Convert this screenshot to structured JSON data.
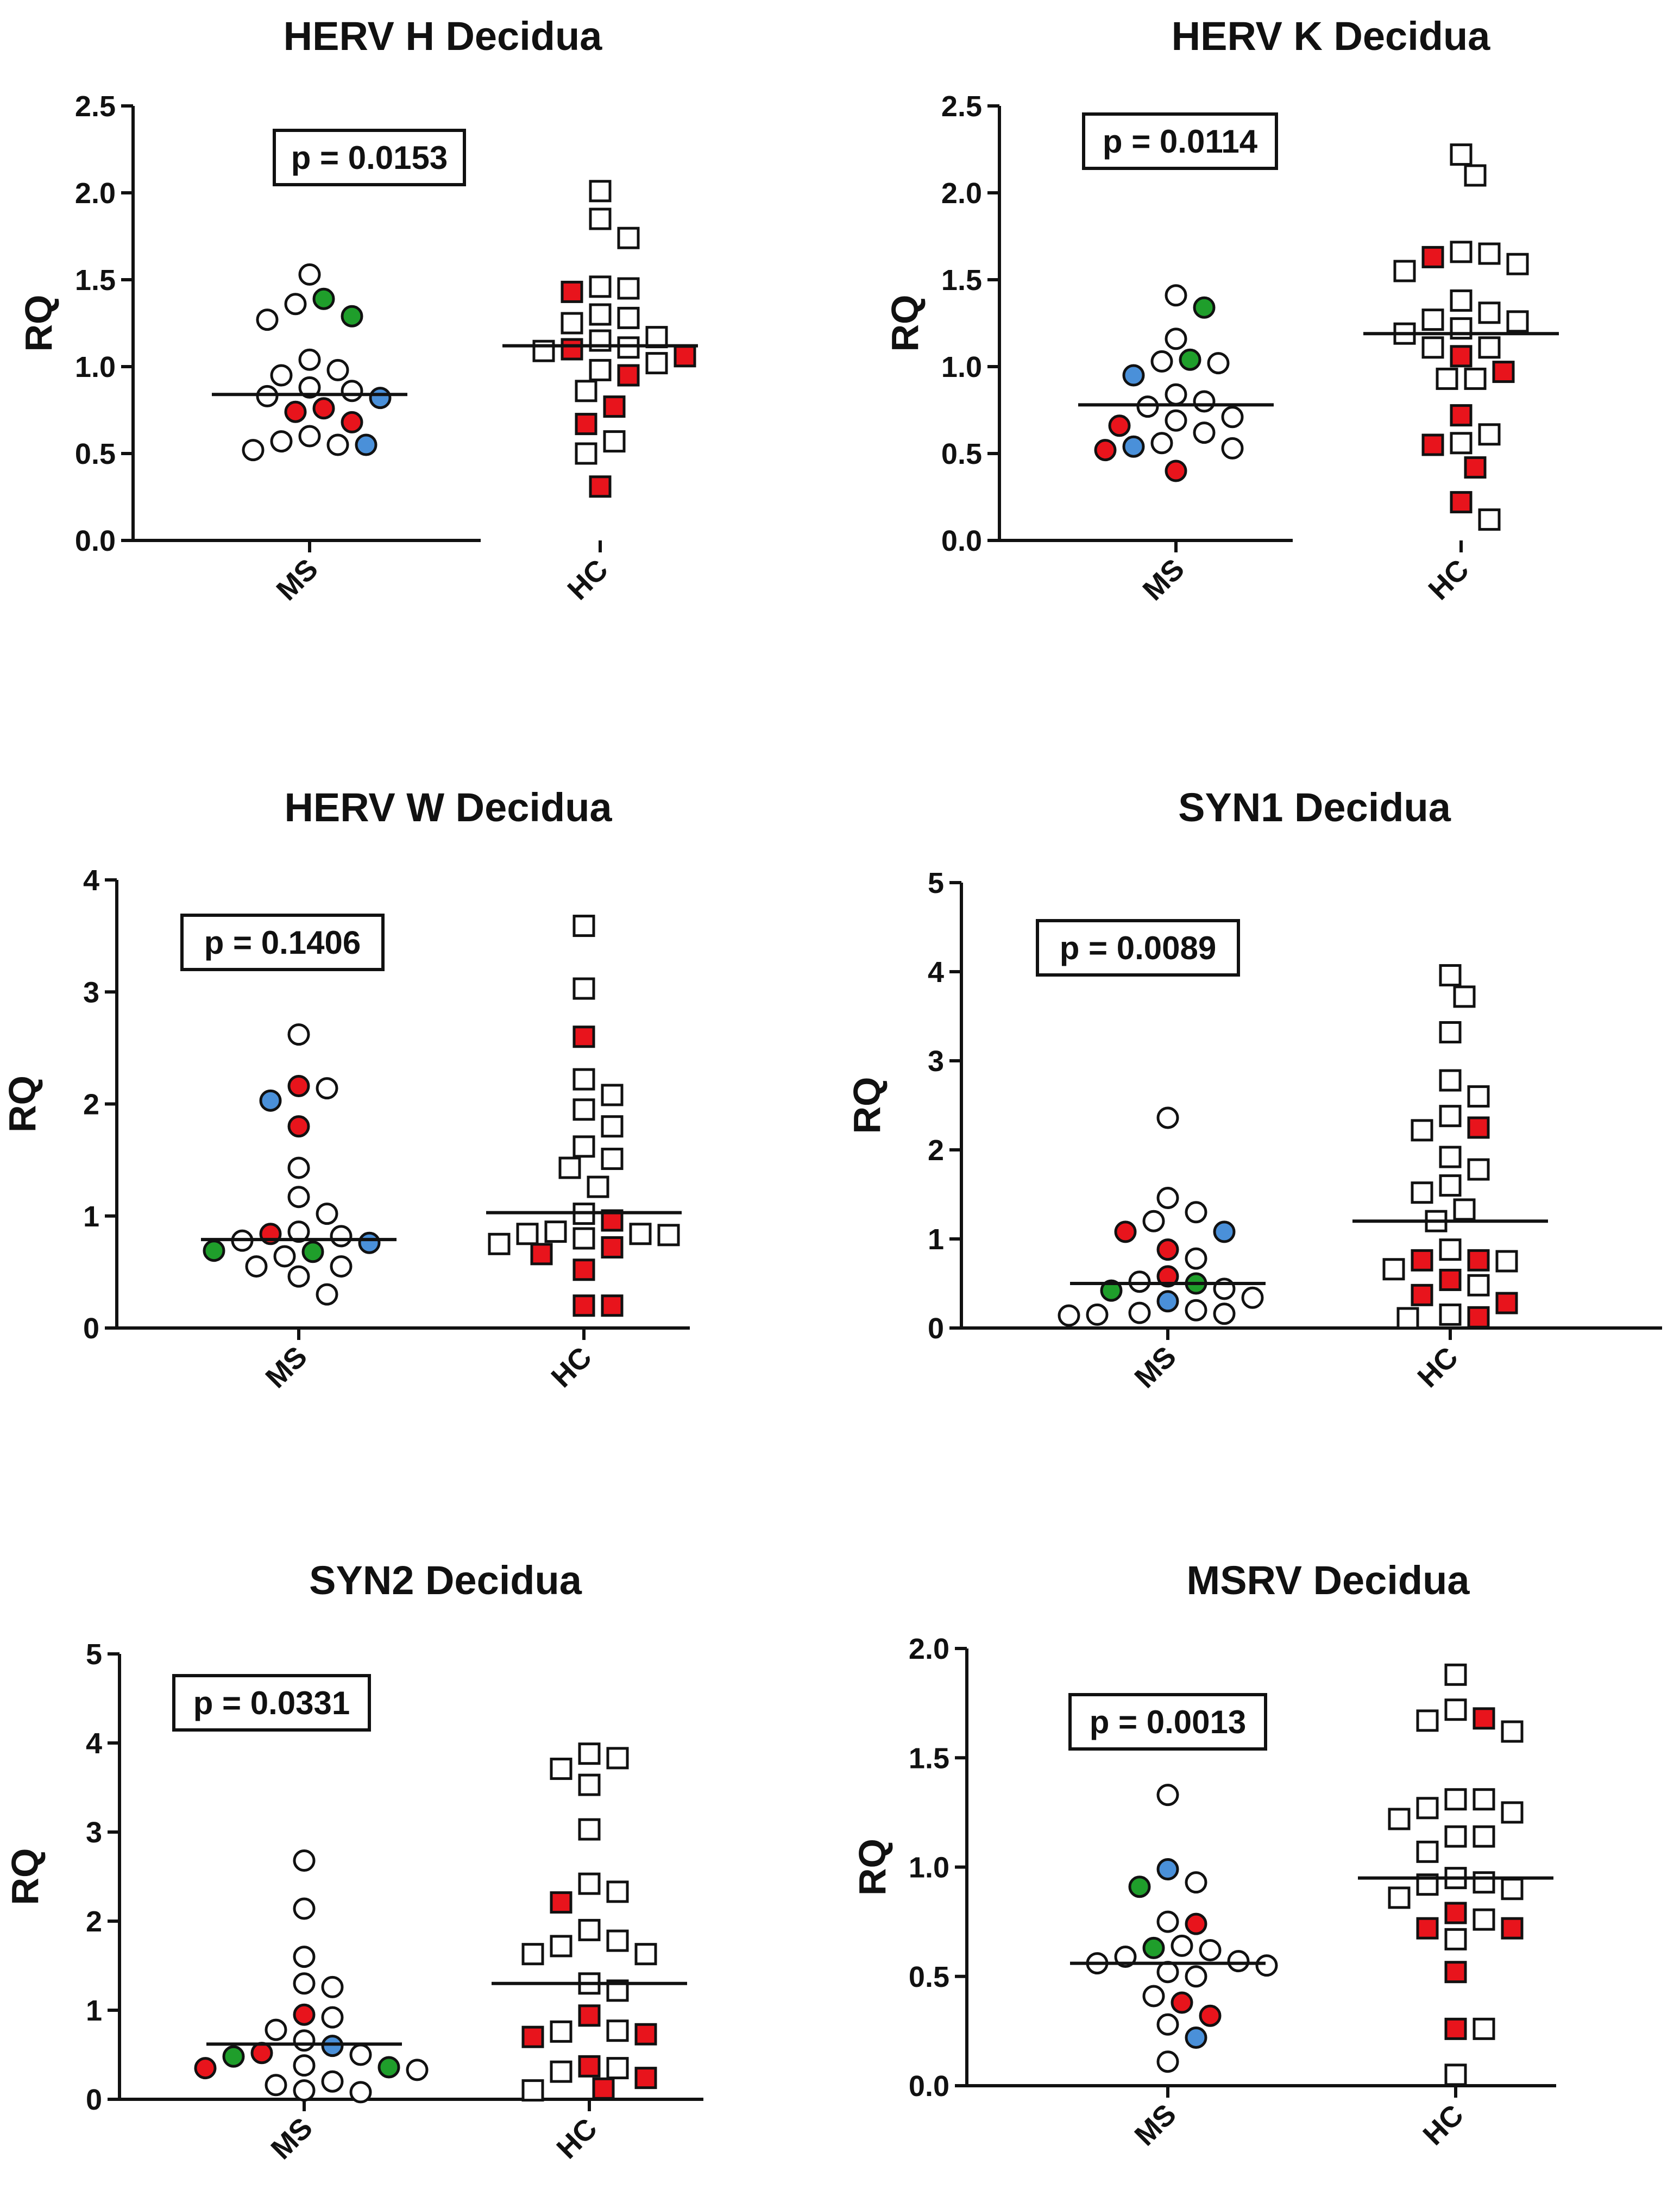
{
  "colors": {
    "open": "#ffffff",
    "red": "#e8141c",
    "green": "#1f9e2b",
    "blue": "#4a90d9",
    "stroke": "#111111"
  },
  "chart_data": [
    {
      "type": "scatter",
      "title": "HERV H Decidua",
      "ylabel": "RQ",
      "ylim": [
        0,
        2.5
      ],
      "yticks": [
        "0.0",
        "0.5",
        "1.0",
        "1.5",
        "2.0",
        "2.5"
      ],
      "pvalue": "p = 0.0153",
      "categories": [
        "MS",
        "HC"
      ],
      "series": [
        {
          "name": "MS",
          "marker": "circle",
          "mean": 0.84,
          "values": [
            0.95,
            0.86,
            0.83,
            0.82,
            0.76,
            0.57,
            0.55,
            0.52,
            0.55,
            0.6,
            0.68,
            0.74,
            0.88,
            0.98,
            1.04,
            1.27,
            1.36,
            1.29,
            1.39,
            1.53
          ],
          "colors": [
            "open",
            "open",
            "open",
            "blue",
            "red",
            "open",
            "open",
            "open",
            "blue",
            "open",
            "red",
            "red",
            "open",
            "open",
            "open",
            "open",
            "open",
            "green",
            "green",
            "open"
          ]
        },
        {
          "name": "HC",
          "marker": "square",
          "mean": 1.12,
          "values": [
            2.01,
            1.85,
            1.74,
            1.45,
            1.43,
            1.46,
            1.3,
            1.28,
            1.25,
            1.17,
            1.15,
            1.11,
            1.1,
            1.09,
            1.06,
            1.02,
            0.98,
            0.95,
            0.86,
            0.77,
            0.67,
            0.57,
            0.5,
            0.31
          ],
          "colors": [
            "open",
            "open",
            "open",
            "open",
            "red",
            "open",
            "open",
            "open",
            "open",
            "open",
            "open",
            "open",
            "red",
            "open",
            "red",
            "open",
            "open",
            "red",
            "open",
            "red",
            "red",
            "open",
            "open",
            "red"
          ]
        }
      ]
    },
    {
      "type": "scatter",
      "title": "HERV K Decidua",
      "ylabel": "RQ",
      "ylim": [
        0,
        2.5
      ],
      "yticks": [
        "0.0",
        "0.5",
        "1.0",
        "1.5",
        "2.0",
        "2.5"
      ],
      "pvalue": "p = 0.0114",
      "categories": [
        "MS",
        "HC"
      ],
      "series": [
        {
          "name": "MS",
          "marker": "circle",
          "mean": 0.78,
          "values": [
            1.41,
            1.34,
            1.16,
            1.04,
            1.03,
            1.02,
            0.95,
            0.84,
            0.8,
            0.77,
            0.71,
            0.69,
            0.66,
            0.62,
            0.56,
            0.54,
            0.53,
            0.52,
            0.4
          ],
          "colors": [
            "open",
            "green",
            "open",
            "green",
            "open",
            "open",
            "blue",
            "open",
            "open",
            "open",
            "open",
            "open",
            "red",
            "open",
            "open",
            "blue",
            "open",
            "red",
            "red"
          ]
        },
        {
          "name": "HC",
          "marker": "square",
          "mean": 1.19,
          "values": [
            2.22,
            2.1,
            1.66,
            1.65,
            1.63,
            1.59,
            1.55,
            1.38,
            1.31,
            1.27,
            1.26,
            1.22,
            1.19,
            1.11,
            1.11,
            1.06,
            0.97,
            0.93,
            0.93,
            0.72,
            0.61,
            0.56,
            0.55,
            0.42,
            0.22,
            0.12
          ],
          "colors": [
            "open",
            "open",
            "open",
            "open",
            "red",
            "open",
            "open",
            "open",
            "open",
            "open",
            "open",
            "open",
            "open",
            "open",
            "open",
            "red",
            "red",
            "open",
            "open",
            "red",
            "open",
            "open",
            "red",
            "red",
            "red",
            "open"
          ]
        }
      ]
    },
    {
      "type": "scatter",
      "title": "HERV W Decidua",
      "ylabel": "RQ",
      "ylim": [
        0,
        4
      ],
      "yticks": [
        "0",
        "1",
        "2",
        "3",
        "4"
      ],
      "pvalue": "p = 0.1406",
      "categories": [
        "MS",
        "HC"
      ],
      "series": [
        {
          "name": "MS",
          "marker": "circle",
          "mean": 0.79,
          "values": [
            2.62,
            2.16,
            2.14,
            2.03,
            1.8,
            1.43,
            1.17,
            1.02,
            0.86,
            0.84,
            0.82,
            0.78,
            0.76,
            0.69,
            0.68,
            0.64,
            0.55,
            0.55,
            0.46,
            0.3
          ],
          "colors": [
            "open",
            "red",
            "open",
            "blue",
            "red",
            "open",
            "open",
            "open",
            "open",
            "red",
            "open",
            "open",
            "blue",
            "green",
            "green",
            "open",
            "open",
            "open",
            "open",
            "open"
          ]
        },
        {
          "name": "HC",
          "marker": "square",
          "mean": 1.03,
          "values": [
            3.59,
            3.03,
            2.6,
            2.22,
            2.08,
            1.95,
            1.8,
            1.62,
            1.51,
            1.43,
            1.26,
            1.02,
            0.96,
            0.86,
            0.84,
            0.84,
            0.83,
            0.8,
            0.75,
            0.72,
            0.66,
            0.52,
            0.2,
            0.2
          ],
          "colors": [
            "open",
            "open",
            "red",
            "open",
            "open",
            "open",
            "open",
            "open",
            "open",
            "open",
            "open",
            "open",
            "red",
            "open",
            "open",
            "open",
            "open",
            "open",
            "open",
            "red",
            "red",
            "red",
            "red",
            "red"
          ]
        }
      ]
    },
    {
      "type": "scatter",
      "title": "SYN1 Decidua",
      "ylabel": "RQ",
      "ylim": [
        0,
        5
      ],
      "yticks": [
        "0",
        "1",
        "2",
        "3",
        "4",
        "5"
      ],
      "pvalue": "p = 0.0089",
      "categories": [
        "MS",
        "HC"
      ],
      "series": [
        {
          "name": "MS",
          "marker": "circle",
          "mean": 0.5,
          "values": [
            2.36,
            1.46,
            1.3,
            1.2,
            1.08,
            1.08,
            0.88,
            0.78,
            0.58,
            0.52,
            0.5,
            0.44,
            0.42,
            0.34,
            0.3,
            0.2,
            0.17,
            0.16,
            0.15,
            0.14
          ],
          "colors": [
            "open",
            "open",
            "open",
            "open",
            "red",
            "blue",
            "red",
            "open",
            "red",
            "open",
            "green",
            "open",
            "green",
            "open",
            "blue",
            "open",
            "open",
            "open",
            "open",
            "open"
          ]
        },
        {
          "name": "HC",
          "marker": "square",
          "mean": 1.2,
          "values": [
            3.96,
            3.72,
            3.32,
            2.78,
            2.6,
            2.38,
            2.25,
            2.22,
            1.92,
            1.78,
            1.6,
            1.52,
            1.33,
            1.2,
            0.88,
            0.76,
            0.76,
            0.75,
            0.66,
            0.54,
            0.48,
            0.37,
            0.28,
            0.15,
            0.12,
            0.11
          ],
          "colors": [
            "open",
            "open",
            "open",
            "open",
            "open",
            "open",
            "red",
            "open",
            "open",
            "open",
            "open",
            "open",
            "open",
            "open",
            "open",
            "red",
            "red",
            "open",
            "open",
            "red",
            "open",
            "red",
            "red",
            "open",
            "red",
            "open"
          ]
        }
      ]
    },
    {
      "type": "scatter",
      "title": "SYN2 Decidua",
      "ylabel": "RQ",
      "ylim": [
        0,
        5
      ],
      "yticks": [
        "0",
        "1",
        "2",
        "3",
        "4",
        "5"
      ],
      "pvalue": "p = 0.0331",
      "categories": [
        "MS",
        "HC"
      ],
      "series": [
        {
          "name": "MS",
          "marker": "circle",
          "mean": 0.62,
          "values": [
            2.68,
            2.14,
            1.6,
            1.3,
            1.26,
            0.95,
            0.92,
            0.78,
            0.66,
            0.6,
            0.52,
            0.5,
            0.48,
            0.38,
            0.36,
            0.35,
            0.33,
            0.2,
            0.16,
            0.1,
            0.08
          ],
          "colors": [
            "open",
            "open",
            "open",
            "open",
            "open",
            "red",
            "open",
            "open",
            "open",
            "blue",
            "red",
            "open",
            "green",
            "open",
            "green",
            "red",
            "open",
            "open",
            "open",
            "open",
            "open"
          ]
        },
        {
          "name": "HC",
          "marker": "square",
          "mean": 1.3,
          "values": [
            3.88,
            3.83,
            3.71,
            3.53,
            3.03,
            2.42,
            2.33,
            2.21,
            1.9,
            1.78,
            1.72,
            1.63,
            1.63,
            1.3,
            1.22,
            0.94,
            0.77,
            0.76,
            0.73,
            0.7,
            0.37,
            0.35,
            0.31,
            0.24,
            0.12,
            0.1
          ],
          "colors": [
            "open",
            "open",
            "open",
            "open",
            "open",
            "open",
            "open",
            "red",
            "open",
            "open",
            "open",
            "open",
            "open",
            "open",
            "open",
            "red",
            "open",
            "open",
            "red",
            "red",
            "red",
            "open",
            "open",
            "red",
            "red",
            "open"
          ]
        }
      ]
    },
    {
      "type": "scatter",
      "title": "MSRV Decidua",
      "ylabel": "RQ",
      "ylim": [
        0,
        2
      ],
      "yticks": [
        "0.0",
        "0.5",
        "1.0",
        "1.5",
        "2.0"
      ],
      "pvalue": "p = 0.0013",
      "categories": [
        "MS",
        "HC"
      ],
      "series": [
        {
          "name": "MS",
          "marker": "circle",
          "mean": 0.56,
          "values": [
            1.33,
            0.99,
            0.93,
            0.91,
            0.75,
            0.74,
            0.64,
            0.63,
            0.62,
            0.59,
            0.57,
            0.56,
            0.55,
            0.52,
            0.5,
            0.41,
            0.38,
            0.32,
            0.28,
            0.22,
            0.11
          ],
          "colors": [
            "open",
            "blue",
            "open",
            "green",
            "open",
            "red",
            "open",
            "green",
            "open",
            "open",
            "open",
            "open",
            "open",
            "open",
            "open",
            "open",
            "red",
            "red",
            "open",
            "blue",
            "open"
          ]
        },
        {
          "name": "HC",
          "marker": "square",
          "mean": 0.95,
          "values": [
            1.88,
            1.72,
            1.68,
            1.67,
            1.62,
            1.31,
            1.31,
            1.27,
            1.25,
            1.22,
            1.14,
            1.14,
            1.07,
            0.95,
            0.93,
            0.92,
            0.9,
            0.86,
            0.79,
            0.76,
            0.72,
            0.72,
            0.67,
            0.52,
            0.26,
            0.26,
            0.05
          ],
          "colors": [
            "open",
            "open",
            "red",
            "open",
            "open",
            "open",
            "open",
            "open",
            "open",
            "open",
            "open",
            "open",
            "open",
            "open",
            "open",
            "open",
            "open",
            "open",
            "red",
            "open",
            "red",
            "red",
            "open",
            "red",
            "red",
            "open",
            "open"
          ]
        }
      ]
    }
  ]
}
